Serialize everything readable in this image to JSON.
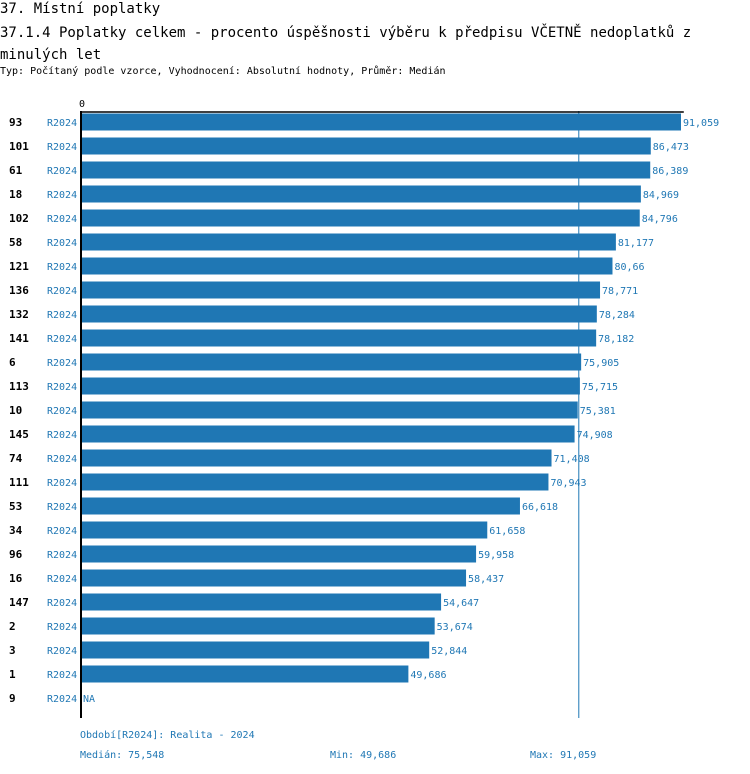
{
  "header": {
    "title": "37. Místní poplatky",
    "subtitle": "37.1.4 Poplatky celkem - procento úspěšnosti výběru k předpisu VČETNĚ nedoplatků z minulých let",
    "info": "Typ: Počítaný podle vzorce, Vyhodnocení: Absolutní hodnoty, Průměr: Medián"
  },
  "chart_data": {
    "type": "bar",
    "orientation": "horizontal",
    "axis_zero_label": "0",
    "xlim": [
      0,
      91.059
    ],
    "categories": [
      "93",
      "101",
      "61",
      "18",
      "102",
      "58",
      "121",
      "136",
      "132",
      "141",
      "6",
      "113",
      "10",
      "145",
      "74",
      "111",
      "53",
      "34",
      "96",
      "16",
      "147",
      "2",
      "3",
      "1",
      "9"
    ],
    "period_labels": [
      "R2024",
      "R2024",
      "R2024",
      "R2024",
      "R2024",
      "R2024",
      "R2024",
      "R2024",
      "R2024",
      "R2024",
      "R2024",
      "R2024",
      "R2024",
      "R2024",
      "R2024",
      "R2024",
      "R2024",
      "R2024",
      "R2024",
      "R2024",
      "R2024",
      "R2024",
      "R2024",
      "R2024",
      "R2024"
    ],
    "values": [
      91.059,
      86.473,
      86.389,
      84.969,
      84.796,
      81.177,
      80.66,
      78.771,
      78.284,
      78.182,
      75.905,
      75.715,
      75.381,
      74.908,
      71.408,
      70.943,
      66.618,
      61.658,
      59.958,
      58.437,
      54.647,
      53.674,
      52.844,
      49.686,
      null
    ],
    "value_labels": [
      "91,059",
      "86,473",
      "86,389",
      "84,969",
      "84,796",
      "81,177",
      "80,66",
      "78,771",
      "78,284",
      "78,182",
      "75,905",
      "75,715",
      "75,381",
      "74,908",
      "71,408",
      "70,943",
      "66,618",
      "61,658",
      "59,958",
      "58,437",
      "54,647",
      "53,674",
      "52,844",
      "49,686",
      "NA"
    ],
    "median": 75.548,
    "bar_color": "#1f77b4",
    "text_color": "#1f77b4"
  },
  "footer": {
    "period": "Období[R2024]: Realita - 2024",
    "median": "Medián: 75,548",
    "min": "Min: 49,686",
    "max": "Max: 91,059"
  }
}
